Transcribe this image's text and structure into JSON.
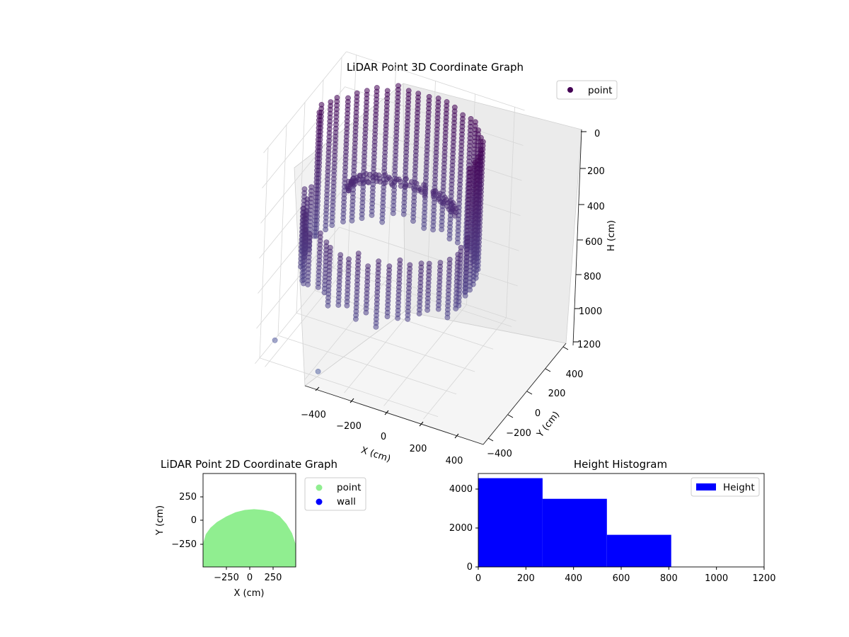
{
  "chart_data": [
    {
      "id": "chart3d",
      "type": "scatter",
      "title": "LiDAR Point 3D Coordinate Graph",
      "xlabel": "X (cm)",
      "ylabel": "Y (cm)",
      "zlabel": "H (cm)",
      "xlim": [
        -450,
        450
      ],
      "ylim": [
        -450,
        450
      ],
      "zlim": [
        0,
        1200
      ],
      "z_inverted": true,
      "xticks": [
        "−400",
        "−200",
        "0",
        "200",
        "400"
      ],
      "yticks": [
        "−400",
        "−200",
        "0",
        "200",
        "400"
      ],
      "zticks": [
        "0",
        "200",
        "400",
        "600",
        "800",
        "1000",
        "1200"
      ],
      "series": [
        {
          "name": "point",
          "color": "#440154",
          "description_shape": "near-circular vertical wall of points, radius about 400 cm, heights from about 50 cm to about 810 cm, plus an interior curved band around 430-520 cm"
        }
      ],
      "legend_position": "top-right",
      "grid": true
    },
    {
      "id": "chart2d",
      "type": "scatter",
      "title": "LiDAR Point 2D Coordinate Graph",
      "xlabel": "X (cm)",
      "ylabel": "Y (cm)",
      "xlim": [
        -500,
        500
      ],
      "ylim": [
        -500,
        500
      ],
      "xticks": [
        "−250",
        "0",
        "250"
      ],
      "yticks": [
        "250",
        "0",
        "−250"
      ],
      "series": [
        {
          "name": "point",
          "color": "#90ee90",
          "shape": "filled dome, top at about Y=120 near X=50, widening to the left/right edges below Y=-250"
        },
        {
          "name": "wall",
          "color": "#0000ff",
          "shape": "no visible points"
        }
      ],
      "legend_position": "outside-right",
      "grid": false
    },
    {
      "id": "hist",
      "type": "bar",
      "title": "Height Histogram",
      "xlabel": "",
      "ylabel": "",
      "xlim": [
        0,
        1200
      ],
      "ylim": [
        0,
        4800
      ],
      "xticks": [
        "0",
        "200",
        "400",
        "600",
        "800",
        "1000",
        "1200"
      ],
      "yticks": [
        "0",
        "2000",
        "4000"
      ],
      "series": [
        {
          "name": "Height",
          "color": "#0000ff",
          "bins": [
            {
              "from": 0,
              "to": 270,
              "count": 4560
            },
            {
              "from": 270,
              "to": 540,
              "count": 3500
            },
            {
              "from": 540,
              "to": 810,
              "count": 1650
            }
          ]
        }
      ],
      "legend_position": "top-right",
      "grid": false
    }
  ]
}
